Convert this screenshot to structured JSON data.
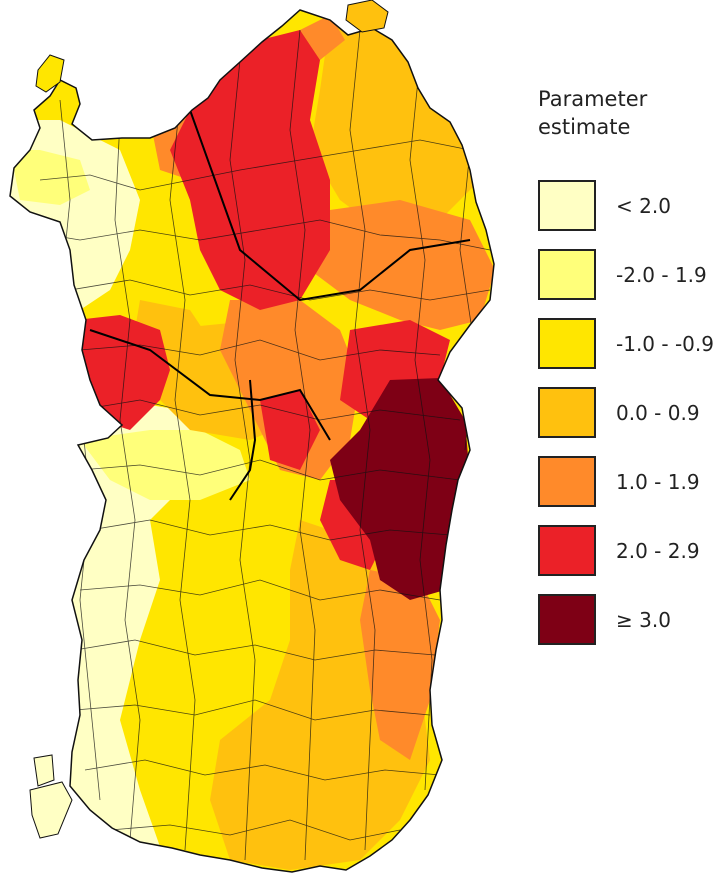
{
  "legend": {
    "title_line1": "Parameter",
    "title_line2": "estimate",
    "items": [
      {
        "label": "< 2.0",
        "color": "#FFFFC4"
      },
      {
        "label": "-2.0 - 1.9",
        "color": "#FFFF7A"
      },
      {
        "label": "-1.0 -  -0.9",
        "color": "#FFE600"
      },
      {
        "label": "0.0 -  0.9",
        "color": "#FFC10E"
      },
      {
        "label": "1.0 - 1.9",
        "color": "#FF8A2A"
      },
      {
        "label": "2.0 - 2.9",
        "color": "#EB2128"
      },
      {
        "label": "≥  3.0",
        "color": "#7E0015"
      }
    ]
  },
  "map": {
    "outline_color": "#111111"
  }
}
